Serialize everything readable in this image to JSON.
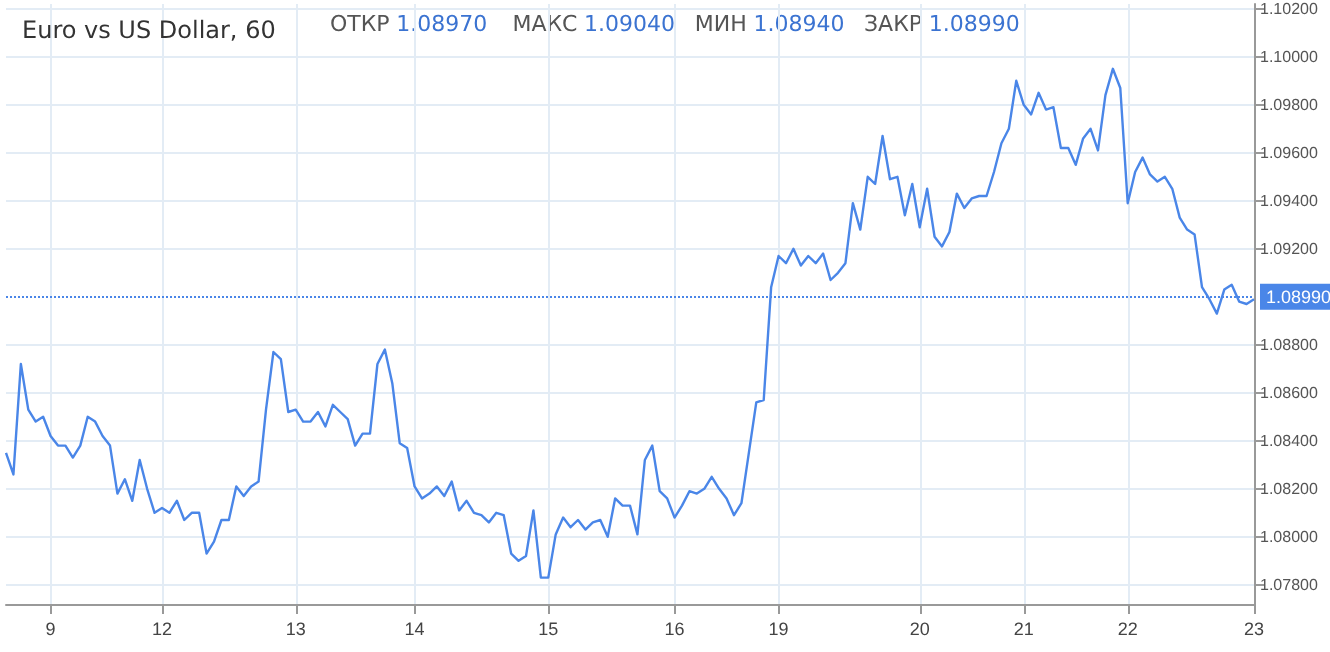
{
  "chart_data": {
    "type": "line",
    "title": "Euro vs US Dollar, 60",
    "annotations": [
      "ОТКР 1.08970",
      "МАКС 1.09040",
      "МИН 1.08940",
      "ЗАКР 1.08990"
    ],
    "categories": [
      null,
      null,
      null,
      null,
      null,
      null,
      "9",
      null,
      null,
      null,
      null,
      null,
      null,
      null,
      null,
      null,
      null,
      null,
      null,
      null,
      null,
      "12",
      null,
      null,
      null,
      null,
      null,
      null,
      null,
      null,
      null,
      null,
      null,
      null,
      null,
      null,
      null,
      null,
      null,
      "13",
      null,
      null,
      null,
      null,
      null,
      null,
      null,
      null,
      null,
      null,
      null,
      null,
      null,
      null,
      null,
      "14",
      null,
      null,
      null,
      null,
      null,
      null,
      null,
      null,
      null,
      null,
      null,
      null,
      null,
      null,
      null,
      null,
      null,
      "15",
      null,
      null,
      null,
      null,
      null,
      null,
      null,
      null,
      null,
      null,
      null,
      null,
      null,
      null,
      null,
      null,
      "16",
      null,
      null,
      null,
      null,
      null,
      null,
      null,
      null,
      null,
      null,
      null,
      null,
      null,
      "19",
      null,
      null,
      null,
      null,
      null,
      null,
      null,
      null,
      null,
      null,
      null,
      null,
      null,
      null,
      null,
      null,
      null,
      null,
      "20",
      null,
      null,
      null,
      null,
      null,
      null,
      null,
      null,
      null,
      null,
      null,
      null,
      null,
      "21",
      null,
      null,
      null,
      null,
      null,
      null,
      null,
      null,
      null,
      null,
      null,
      null,
      null,
      "22",
      null,
      null,
      null,
      null,
      null,
      null,
      null,
      null,
      null,
      null,
      null,
      null,
      null,
      null,
      null,
      null,
      "23"
    ],
    "values": [
      1.0835,
      1.0826,
      1.0872,
      1.0853,
      1.0848,
      1.085,
      1.0842,
      1.0838,
      1.0838,
      1.0833,
      1.0838,
      1.085,
      1.0848,
      1.0842,
      1.0838,
      1.0818,
      1.0824,
      1.0815,
      1.0832,
      1.082,
      1.081,
      1.0812,
      1.081,
      1.0815,
      1.0807,
      1.081,
      1.081,
      1.0793,
      1.0798,
      1.0807,
      1.0807,
      1.0821,
      1.0817,
      1.0821,
      1.0823,
      1.0853,
      1.0877,
      1.0874,
      1.0852,
      1.0853,
      1.0848,
      1.0848,
      1.0852,
      1.0846,
      1.0855,
      1.0852,
      1.0849,
      1.0838,
      1.0843,
      1.0843,
      1.0872,
      1.0878,
      1.0864,
      1.0839,
      1.0837,
      1.0821,
      1.0816,
      1.0818,
      1.0821,
      1.0817,
      1.0823,
      1.0811,
      1.0815,
      1.081,
      1.0809,
      1.0806,
      1.081,
      1.0809,
      1.0793,
      1.079,
      1.0792,
      1.0811,
      1.0783,
      1.0783,
      1.0801,
      1.0808,
      1.0804,
      1.0807,
      1.0803,
      1.0806,
      1.0807,
      1.08,
      1.0816,
      1.0813,
      1.0813,
      1.0801,
      1.0832,
      1.0838,
      1.0819,
      1.0816,
      1.0808,
      1.0813,
      1.0819,
      1.0818,
      1.082,
      1.0825,
      1.082,
      1.0816,
      1.0809,
      1.0814,
      1.0835,
      1.0856,
      1.0857,
      1.0904,
      1.0917,
      1.0914,
      1.092,
      1.0913,
      1.0917,
      1.0914,
      1.0918,
      1.0907,
      1.091,
      1.0914,
      1.0939,
      1.0928,
      1.095,
      1.0947,
      1.0967,
      1.0949,
      1.095,
      1.0934,
      1.0947,
      1.0929,
      1.0945,
      1.0925,
      1.0921,
      1.0927,
      1.0943,
      1.0937,
      1.0941,
      1.0942,
      1.0942,
      1.0952,
      1.0964,
      1.097,
      1.099,
      1.098,
      1.0976,
      1.0985,
      1.0978,
      1.0979,
      1.0962,
      1.0962,
      1.0955,
      1.0966,
      1.097,
      1.0961,
      1.0984,
      1.0995,
      1.0987,
      1.0939,
      1.0952,
      1.0958,
      1.0951,
      1.0948,
      1.095,
      1.0945,
      1.0933,
      1.0928,
      1.0926,
      1.0904,
      1.0899,
      1.0893,
      1.0903,
      1.0905,
      1.0898,
      1.0897,
      1.0899
    ],
    "color": "#4a86e8",
    "marker": "none",
    "line_style": "solid",
    "grid": true,
    "ylim": [
      1.0772,
      1.1022
    ],
    "yticks": [
      {
        "value": 1.078,
        "label": "1.07800"
      },
      {
        "value": 1.08,
        "label": "1.08000"
      },
      {
        "value": 1.082,
        "label": "1.08200"
      },
      {
        "value": 1.084,
        "label": "1.08400"
      },
      {
        "value": 1.086,
        "label": "1.08600"
      },
      {
        "value": 1.088,
        "label": "1.08800"
      },
      {
        "value": 1.092,
        "label": "1.09200"
      },
      {
        "value": 1.094,
        "label": "1.09400"
      },
      {
        "value": 1.096,
        "label": "1.09600"
      },
      {
        "value": 1.098,
        "label": "1.09800"
      },
      {
        "value": 1.1,
        "label": "1.10000"
      },
      {
        "value": 1.102,
        "label": "1.10200"
      }
    ],
    "ref_lines": [
      {
        "axis": "y",
        "value": 1.0899,
        "label": "1.08990",
        "color": "#4a86e8",
        "line_style": "dotted"
      }
    ]
  }
}
